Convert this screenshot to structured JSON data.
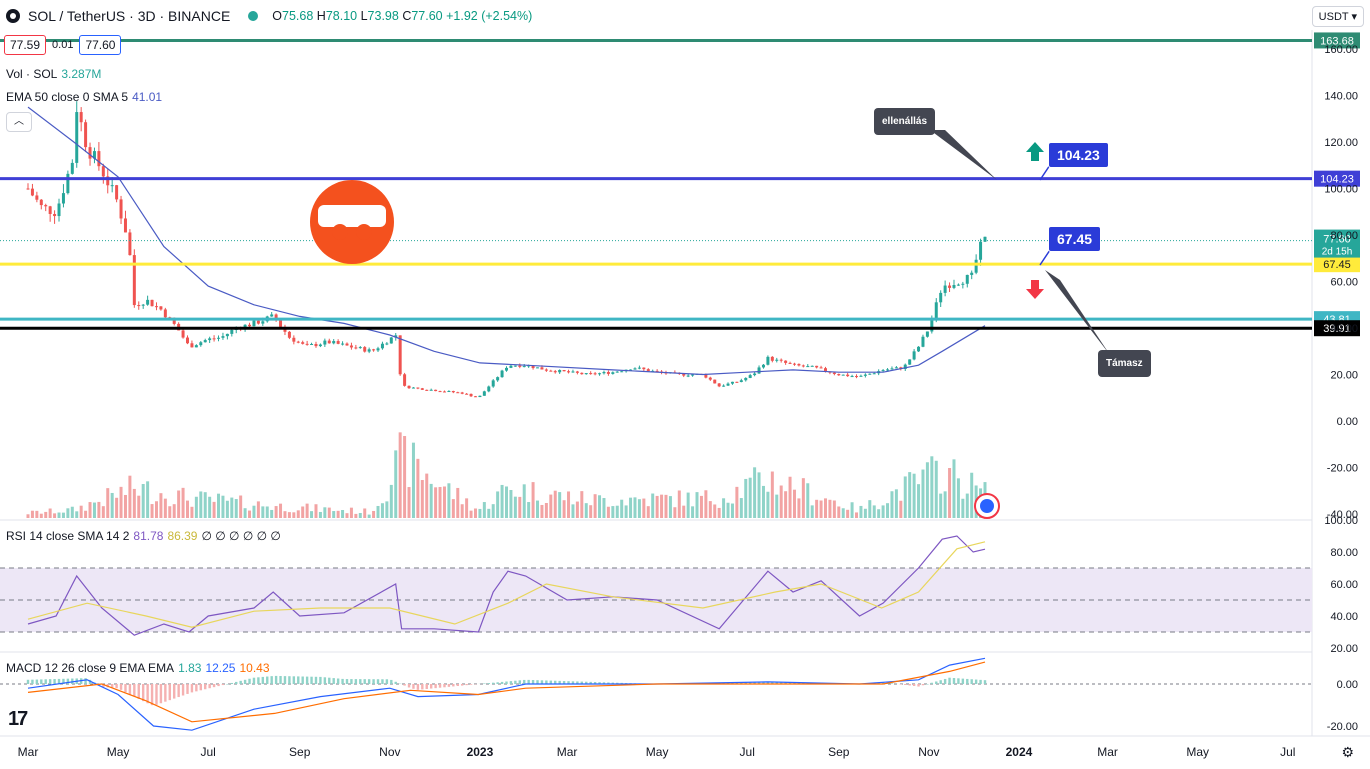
{
  "header": {
    "symbol": "SOL / TetherUS · 3D · BINANCE",
    "o_label": "O",
    "o": "75.68",
    "h_label": "H",
    "h": "78.10",
    "l_label": "L",
    "l": "73.98",
    "c_label": "C",
    "c": "77.60",
    "change": "+1.92 (+2.54%)",
    "sell_price": "77.59",
    "spread": "0.01",
    "buy_price": "77.60",
    "currency": "USDT"
  },
  "indicators": {
    "vol_label": "Vol · SOL",
    "vol_value": "3.287M",
    "ema_label": "EMA 50 close 0 SMA 5",
    "ema_value": "41.01",
    "rsi_label": "RSI 14 close SMA 14 2",
    "rsi_value": "81.78",
    "rsi_sma": "86.39",
    "rsi_empty": "∅ ∅ ∅ ∅ ∅ ∅",
    "macd_label": "MACD 12 26 close 9 EMA EMA",
    "macd_hist": "1.83",
    "macd_line": "12.25",
    "macd_signal": "10.43"
  },
  "annotations": {
    "resistance_label": "ellenállás",
    "support_label": "Támasz",
    "resistance_value": "104.23",
    "support_value": "67.45"
  },
  "colors": {
    "up": "#26a69a",
    "down": "#ef5350",
    "ema": "#4a5bc4",
    "resistance": "#3f3fd6",
    "support": "#ffeb3b",
    "teal": "#3fb6c4",
    "black": "#000000",
    "top": "#2e8b73",
    "rsi": "#7e57c2",
    "rsi_sma": "#e8d65c",
    "macd": "#2962ff",
    "signal": "#ff6d00"
  },
  "chart_data": [
    {
      "type": "candlestick",
      "title": "SOL / TetherUS · 3D · BINANCE",
      "y_ticks": [
        160,
        140,
        120,
        100,
        80,
        60,
        40,
        20,
        0,
        -20,
        -40
      ],
      "y_tick_labels": [
        "160.00",
        "140.00",
        "120.00",
        "100.00",
        "80.00",
        "60.00",
        "40.00",
        "20.00",
        "0.00",
        "-20.00",
        "-40.00"
      ],
      "ylim": [
        -40,
        165
      ],
      "x_ticks": [
        "Mar",
        "May",
        "Jul",
        "Sep",
        "Nov",
        "2023",
        "Mar",
        "May",
        "Jul",
        "Sep",
        "Nov",
        "2024",
        "Mar",
        "May",
        "Jul"
      ],
      "close_path": [
        [
          "2022-03-01",
          100
        ],
        [
          "2022-03-10",
          92
        ],
        [
          "2022-03-20",
          90
        ],
        [
          "2022-03-31",
          112
        ],
        [
          "2022-04-03",
          135
        ],
        [
          "2022-04-10",
          118
        ],
        [
          "2022-04-20",
          108
        ],
        [
          "2022-04-30",
          95
        ],
        [
          "2022-05-08",
          78
        ],
        [
          "2022-05-12",
          50
        ],
        [
          "2022-05-20",
          52
        ],
        [
          "2022-05-30",
          48
        ],
        [
          "2022-06-10",
          40
        ],
        [
          "2022-06-18",
          32
        ],
        [
          "2022-06-30",
          35
        ],
        [
          "2022-07-10",
          36
        ],
        [
          "2022-07-20",
          40
        ],
        [
          "2022-08-01",
          42
        ],
        [
          "2022-08-14",
          45
        ],
        [
          "2022-08-25",
          36
        ],
        [
          "2022-09-05",
          32
        ],
        [
          "2022-09-20",
          34
        ],
        [
          "2022-10-05",
          32
        ],
        [
          "2022-10-20",
          30
        ],
        [
          "2022-11-05",
          37
        ],
        [
          "2022-11-09",
          15
        ],
        [
          "2022-11-20",
          14
        ],
        [
          "2022-12-05",
          13
        ],
        [
          "2022-12-20",
          12
        ],
        [
          "2022-12-31",
          10
        ],
        [
          "2023-01-10",
          17
        ],
        [
          "2023-01-20",
          24
        ],
        [
          "2023-02-01",
          24
        ],
        [
          "2023-02-15",
          22
        ],
        [
          "2023-03-01",
          21
        ],
        [
          "2023-03-15",
          20
        ],
        [
          "2023-04-01",
          21
        ],
        [
          "2023-04-15",
          23
        ],
        [
          "2023-05-01",
          21
        ],
        [
          "2023-05-15",
          20
        ],
        [
          "2023-06-01",
          20
        ],
        [
          "2023-06-12",
          15
        ],
        [
          "2023-06-25",
          17
        ],
        [
          "2023-07-05",
          20
        ],
        [
          "2023-07-15",
          27
        ],
        [
          "2023-08-01",
          24
        ],
        [
          "2023-08-15",
          23
        ],
        [
          "2023-09-01",
          20
        ],
        [
          "2023-09-15",
          19
        ],
        [
          "2023-10-01",
          22
        ],
        [
          "2023-10-15",
          23
        ],
        [
          "2023-10-25",
          32
        ],
        [
          "2023-11-01",
          40
        ],
        [
          "2023-11-10",
          58
        ],
        [
          "2023-11-20",
          60
        ],
        [
          "2023-11-30",
          62
        ],
        [
          "2023-12-05",
          74
        ],
        [
          "2023-12-09",
          77.6
        ]
      ],
      "volume_path": [
        [
          "2022-03-01",
          5
        ],
        [
          "2022-04-01",
          8
        ],
        [
          "2022-05-12",
          30
        ],
        [
          "2022-06-18",
          20
        ],
        [
          "2022-08-14",
          12
        ],
        [
          "2022-10-20",
          6
        ],
        [
          "2022-11-09",
          60
        ],
        [
          "2022-12-31",
          8
        ],
        [
          "2023-01-20",
          30
        ],
        [
          "2023-03-15",
          18
        ],
        [
          "2023-06-12",
          20
        ],
        [
          "2023-07-15",
          40
        ],
        [
          "2023-09-15",
          8
        ],
        [
          "2023-11-10",
          48
        ],
        [
          "2023-12-09",
          25
        ]
      ],
      "ema_path": [
        [
          "2022-03-01",
          135
        ],
        [
          "2022-04-01",
          120
        ],
        [
          "2022-05-01",
          105
        ],
        [
          "2022-06-01",
          75
        ],
        [
          "2022-07-01",
          58
        ],
        [
          "2022-08-01",
          50
        ],
        [
          "2022-09-01",
          45
        ],
        [
          "2022-10-01",
          42
        ],
        [
          "2022-11-01",
          37
        ],
        [
          "2022-12-01",
          30
        ],
        [
          "2023-01-01",
          25
        ],
        [
          "2023-02-01",
          24
        ],
        [
          "2023-04-01",
          22
        ],
        [
          "2023-06-01",
          20
        ],
        [
          "2023-07-01",
          21
        ],
        [
          "2023-08-01",
          22
        ],
        [
          "2023-09-01",
          21
        ],
        [
          "2023-10-01",
          21
        ],
        [
          "2023-10-25",
          24
        ],
        [
          "2023-11-10",
          30
        ],
        [
          "2023-12-09",
          41.01
        ]
      ],
      "levels": [
        {
          "value": 163.68,
          "label": "163.68"
        },
        {
          "value": 104.23,
          "label": "104.23"
        },
        {
          "value": 67.45,
          "label": "67.45"
        },
        {
          "value": 43.81,
          "label": "43.81"
        },
        {
          "value": 39.91,
          "label": "39.91"
        }
      ],
      "last_price": "77.60",
      "countdown": "2d 15h"
    },
    {
      "type": "line",
      "title": "RSI 14 close SMA 14 2",
      "y_tick_labels": [
        "100.00",
        "80.00",
        "60.00",
        "40.00",
        "20.00"
      ],
      "y_ticks": [
        100,
        80,
        60,
        40,
        20
      ],
      "bands": [
        30,
        50,
        70
      ],
      "rsi_path": [
        [
          "2022-03-01",
          35
        ],
        [
          "2022-03-20",
          40
        ],
        [
          "2022-04-03",
          65
        ],
        [
          "2022-04-20",
          45
        ],
        [
          "2022-05-12",
          28
        ],
        [
          "2022-06-01",
          35
        ],
        [
          "2022-06-18",
          30
        ],
        [
          "2022-07-01",
          40
        ],
        [
          "2022-08-01",
          45
        ],
        [
          "2022-08-14",
          55
        ],
        [
          "2022-09-01",
          40
        ],
        [
          "2022-10-01",
          42
        ],
        [
          "2022-11-05",
          60
        ],
        [
          "2022-11-09",
          32
        ],
        [
          "2022-12-01",
          32
        ],
        [
          "2022-12-31",
          30
        ],
        [
          "2023-01-10",
          55
        ],
        [
          "2023-01-20",
          68
        ],
        [
          "2023-02-01",
          65
        ],
        [
          "2023-03-01",
          50
        ],
        [
          "2023-04-01",
          52
        ],
        [
          "2023-05-01",
          50
        ],
        [
          "2023-06-12",
          32
        ],
        [
          "2023-07-15",
          68
        ],
        [
          "2023-08-01",
          55
        ],
        [
          "2023-08-20",
          62
        ],
        [
          "2023-09-15",
          40
        ],
        [
          "2023-10-01",
          48
        ],
        [
          "2023-10-25",
          70
        ],
        [
          "2023-11-10",
          88
        ],
        [
          "2023-11-20",
          90
        ],
        [
          "2023-12-01",
          80
        ],
        [
          "2023-12-09",
          81.78
        ]
      ],
      "sma_path": [
        [
          "2022-03-01",
          38
        ],
        [
          "2022-04-10",
          48
        ],
        [
          "2022-05-20",
          40
        ],
        [
          "2022-06-20",
          33
        ],
        [
          "2022-08-01",
          43
        ],
        [
          "2022-09-15",
          45
        ],
        [
          "2022-11-01",
          45
        ],
        [
          "2022-12-15",
          35
        ],
        [
          "2023-01-20",
          48
        ],
        [
          "2023-02-15",
          60
        ],
        [
          "2023-04-01",
          52
        ],
        [
          "2023-06-01",
          45
        ],
        [
          "2023-07-20",
          55
        ],
        [
          "2023-08-20",
          60
        ],
        [
          "2023-09-30",
          45
        ],
        [
          "2023-10-25",
          55
        ],
        [
          "2023-11-20",
          82
        ],
        [
          "2023-12-09",
          86.39
        ]
      ]
    },
    {
      "type": "line",
      "title": "MACD 12 26 close 9 EMA EMA",
      "y_tick_labels": [
        "0.00",
        "-20.00"
      ],
      "y_ticks": [
        0,
        -20
      ],
      "macd_path": [
        [
          "2022-03-01",
          -2
        ],
        [
          "2022-04-10",
          2
        ],
        [
          "2022-05-01",
          -5
        ],
        [
          "2022-05-25",
          -20
        ],
        [
          "2022-06-20",
          -22
        ],
        [
          "2022-08-01",
          -12
        ],
        [
          "2022-09-15",
          -6
        ],
        [
          "2022-11-01",
          -2
        ],
        [
          "2022-11-20",
          -6
        ],
        [
          "2022-12-31",
          -5
        ],
        [
          "2023-02-01",
          0
        ],
        [
          "2023-05-01",
          0
        ],
        [
          "2023-07-15",
          1
        ],
        [
          "2023-09-15",
          0
        ],
        [
          "2023-10-25",
          2
        ],
        [
          "2023-11-15",
          9
        ],
        [
          "2023-12-09",
          12.25
        ]
      ],
      "signal_path": [
        [
          "2022-03-01",
          -4
        ],
        [
          "2022-04-20",
          0
        ],
        [
          "2022-05-20",
          -8
        ],
        [
          "2022-06-20",
          -18
        ],
        [
          "2022-08-15",
          -14
        ],
        [
          "2022-10-01",
          -7
        ],
        [
          "2022-11-15",
          -3
        ],
        [
          "2022-12-31",
          -5
        ],
        [
          "2023-02-01",
          -2
        ],
        [
          "2023-05-01",
          0
        ],
        [
          "2023-08-01",
          0
        ],
        [
          "2023-10-01",
          0
        ],
        [
          "2023-11-15",
          6
        ],
        [
          "2023-12-09",
          10.43
        ]
      ]
    }
  ]
}
